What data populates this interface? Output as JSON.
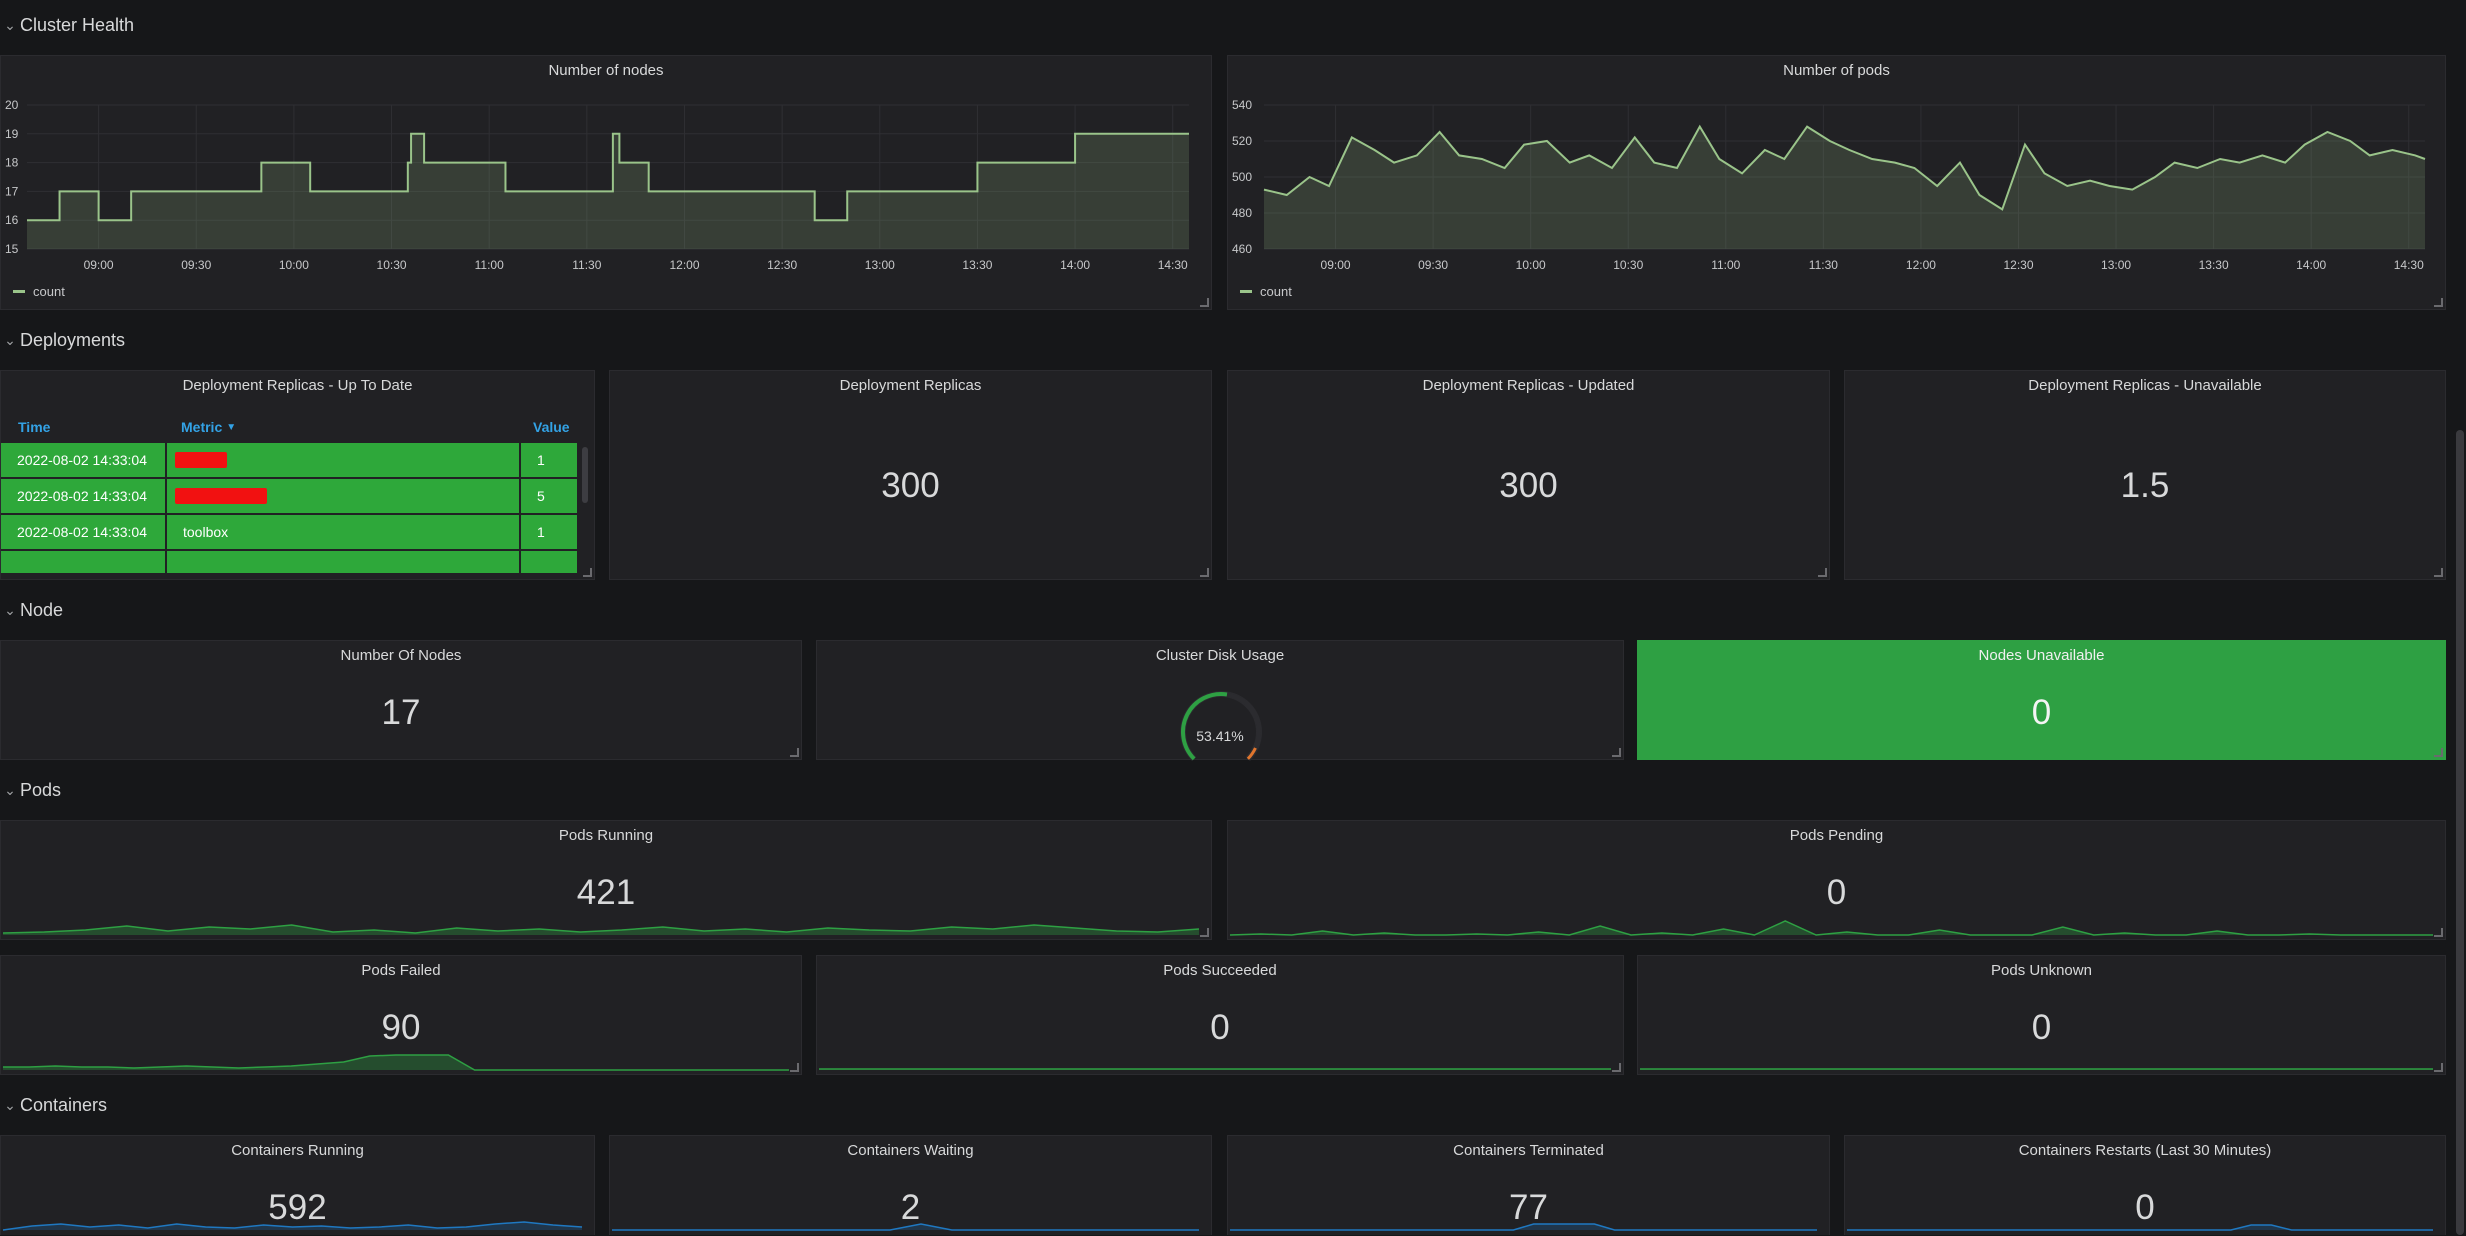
{
  "rows": {
    "cluster_health": "Cluster Health",
    "deployments": "Deployments",
    "node": "Node",
    "pods": "Pods",
    "containers": "Containers"
  },
  "panels": {
    "nodes_chart": {
      "title": "Number of nodes",
      "legend": "count"
    },
    "pods_chart": {
      "title": "Number of pods",
      "legend": "count"
    },
    "replicas_table": {
      "title": "Deployment Replicas - Up To Date",
      "columns": [
        "Time",
        "Metric",
        "Value"
      ],
      "rows": [
        {
          "time": "2022-08-02 14:33:04",
          "metric": "",
          "value": "1",
          "redacted": true
        },
        {
          "time": "2022-08-02 14:33:04",
          "metric": "",
          "value": "5",
          "redacted": true
        },
        {
          "time": "2022-08-02 14:33:04",
          "metric": "toolbox",
          "value": "1",
          "redacted": false
        }
      ]
    },
    "deploy_replicas": {
      "title": "Deployment Replicas",
      "value": "300"
    },
    "deploy_updated": {
      "title": "Deployment Replicas - Updated",
      "value": "300"
    },
    "deploy_unavailable": {
      "title": "Deployment Replicas - Unavailable",
      "value": "1.5"
    },
    "num_nodes": {
      "title": "Number Of Nodes",
      "value": "17"
    },
    "disk_usage": {
      "title": "Cluster Disk Usage",
      "value": "53.41%",
      "fraction": 0.5341
    },
    "nodes_unavailable": {
      "title": "Nodes Unavailable",
      "value": "0"
    },
    "pods_running": {
      "title": "Pods Running",
      "value": "421"
    },
    "pods_pending": {
      "title": "Pods Pending",
      "value": "0"
    },
    "pods_failed": {
      "title": "Pods Failed",
      "value": "90"
    },
    "pods_succeeded": {
      "title": "Pods Succeeded",
      "value": "0"
    },
    "pods_unknown": {
      "title": "Pods Unknown",
      "value": "0"
    },
    "containers_running": {
      "title": "Containers Running",
      "value": "592"
    },
    "containers_waiting": {
      "title": "Containers Waiting",
      "value": "2"
    },
    "containers_terminated": {
      "title": "Containers Terminated",
      "value": "77"
    },
    "containers_restarts": {
      "title": "Containers Restarts (Last 30 Minutes)",
      "value": "0"
    }
  },
  "colors": {
    "series": "#9ac48a",
    "ok": "#2ea83a",
    "sparkline_blue": "#1f78c1"
  },
  "chart_data": [
    {
      "type": "line",
      "title": "Number of nodes",
      "legend": [
        "count"
      ],
      "x": [
        "08:38",
        "08:48",
        "08:49",
        "09:00",
        "09:10",
        "09:30",
        "09:50",
        "10:00",
        "10:05",
        "10:35",
        "10:36",
        "10:40",
        "10:47",
        "11:00",
        "11:05",
        "11:30",
        "11:38",
        "11:40",
        "11:49",
        "12:00",
        "12:30",
        "12:40",
        "12:50",
        "13:00",
        "13:15",
        "13:30",
        "13:40",
        "14:00",
        "14:35"
      ],
      "series": [
        {
          "name": "count",
          "values": [
            16,
            17,
            17,
            16,
            17,
            17,
            18,
            18,
            17,
            18,
            19,
            18,
            18,
            18,
            17,
            17,
            19,
            18,
            17,
            17,
            17,
            16,
            17,
            17,
            17,
            18,
            18,
            19,
            19
          ]
        }
      ],
      "xticks": [
        "09:00",
        "09:30",
        "10:00",
        "10:30",
        "11:00",
        "11:30",
        "12:00",
        "12:30",
        "13:00",
        "13:30",
        "14:00",
        "14:30"
      ],
      "yticks": [
        15,
        16,
        17,
        18,
        19,
        20
      ],
      "ylim": [
        15,
        20
      ]
    },
    {
      "type": "line",
      "title": "Number of pods",
      "legend": [
        "count"
      ],
      "x": [
        "08:38",
        "08:45",
        "08:52",
        "08:58",
        "09:05",
        "09:12",
        "09:18",
        "09:25",
        "09:32",
        "09:38",
        "09:45",
        "09:52",
        "09:58",
        "10:05",
        "10:12",
        "10:18",
        "10:25",
        "10:32",
        "10:38",
        "10:45",
        "10:52",
        "10:58",
        "11:05",
        "11:12",
        "11:18",
        "11:25",
        "11:32",
        "11:38",
        "11:45",
        "11:52",
        "11:58",
        "12:05",
        "12:12",
        "12:18",
        "12:25",
        "12:32",
        "12:38",
        "12:45",
        "12:52",
        "12:58",
        "13:05",
        "13:12",
        "13:18",
        "13:25",
        "13:32",
        "13:38",
        "13:45",
        "13:52",
        "13:58",
        "14:05",
        "14:12",
        "14:18",
        "14:25",
        "14:32",
        "14:35"
      ],
      "series": [
        {
          "name": "count",
          "values": [
            493,
            490,
            500,
            495,
            522,
            515,
            508,
            512,
            525,
            512,
            510,
            505,
            518,
            520,
            508,
            512,
            505,
            522,
            508,
            505,
            528,
            510,
            502,
            515,
            510,
            528,
            520,
            515,
            510,
            508,
            505,
            495,
            508,
            490,
            482,
            518,
            502,
            495,
            498,
            495,
            493,
            500,
            508,
            505,
            510,
            508,
            512,
            508,
            518,
            525,
            520,
            512,
            515,
            512,
            510
          ]
        }
      ],
      "xticks": [
        "09:00",
        "09:30",
        "10:00",
        "10:30",
        "11:00",
        "11:30",
        "12:00",
        "12:30",
        "13:00",
        "13:30",
        "14:00",
        "14:30"
      ],
      "yticks": [
        460,
        480,
        500,
        520,
        540
      ],
      "ylim": [
        460,
        540
      ]
    }
  ]
}
